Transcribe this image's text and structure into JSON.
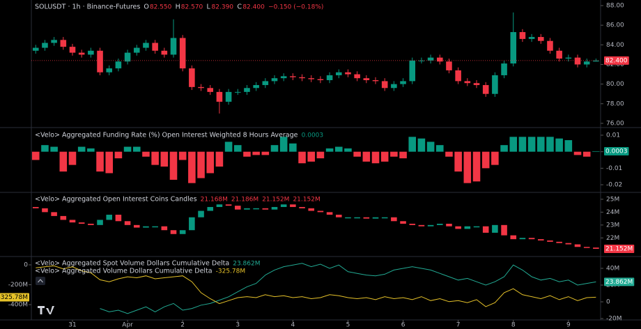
{
  "chart_data": [
    {
      "type": "candlestick",
      "title": "SOLUSDT · 1h · Binance-Futures",
      "ohlc_labels": [
        {
          "key": "O",
          "label": "82.550"
        },
        {
          "key": "H",
          "label": "82.570"
        },
        {
          "key": "L",
          "label": "82.390"
        },
        {
          "key": "C",
          "label": "82.400"
        }
      ],
      "change": "−0.150 (−0.18%)",
      "last_label": "82.400",
      "colors": {
        "up": "#089981",
        "down": "#f23645"
      },
      "xlim": [
        -17.9,
        229.4
      ],
      "ylim": [
        75.64,
        88.57
      ],
      "yticks": [
        {
          "value": 88,
          "label": "88.00"
        },
        {
          "value": 86,
          "label": "86.00"
        },
        {
          "value": 84,
          "label": "84.00"
        },
        {
          "value": 82,
          "label": "82.00"
        },
        {
          "value": 80,
          "label": "80.00"
        },
        {
          "value": 78,
          "label": "78.00"
        },
        {
          "value": 76,
          "label": "76.00"
        }
      ],
      "x": [
        -16,
        -12,
        -8,
        -4,
        0,
        4,
        8,
        12,
        16,
        20,
        24,
        28,
        32,
        36,
        40,
        44,
        48,
        52,
        56,
        60,
        64,
        68,
        72,
        76,
        80,
        84,
        88,
        92,
        96,
        100,
        104,
        108,
        112,
        116,
        120,
        124,
        128,
        132,
        136,
        140,
        144,
        148,
        152,
        156,
        160,
        164,
        168,
        172,
        176,
        180,
        184,
        188,
        192,
        196,
        200,
        204,
        208,
        212,
        216,
        220,
        224,
        228
      ],
      "open": [
        83.4,
        83.7,
        84.2,
        84.5,
        83.8,
        83.2,
        83.0,
        83.4,
        81.2,
        81.6,
        82.3,
        83.2,
        83.7,
        84.2,
        83.4,
        83.0,
        84.7,
        81.6,
        79.7,
        79.6,
        79.2,
        78.2,
        79.2,
        79.2,
        79.6,
        79.9,
        80.3,
        80.6,
        80.8,
        80.7,
        80.6,
        80.5,
        80.4,
        80.9,
        81.2,
        81.0,
        80.6,
        80.4,
        80.3,
        79.6,
        80.0,
        80.3,
        82.4,
        82.4,
        82.7,
        82.3,
        81.4,
        80.3,
        80.1,
        79.9,
        79.0,
        80.9,
        82.1,
        85.3,
        84.6,
        84.8,
        84.4,
        83.4,
        82.6,
        82.7,
        82.0,
        82.3
      ],
      "high": [
        84.0,
        84.5,
        84.8,
        84.8,
        84.1,
        83.5,
        83.7,
        83.7,
        81.9,
        82.6,
        83.5,
        84.0,
        84.5,
        84.5,
        83.7,
        86.6,
        85.0,
        81.9,
        80.0,
        79.9,
        79.5,
        79.5,
        79.5,
        79.9,
        80.2,
        80.6,
        80.9,
        81.1,
        81.1,
        81.0,
        80.9,
        80.8,
        81.2,
        81.5,
        81.5,
        81.3,
        80.9,
        80.7,
        80.6,
        80.3,
        80.6,
        82.7,
        82.7,
        83.0,
        83.0,
        82.6,
        81.7,
        80.6,
        80.4,
        80.2,
        81.2,
        82.4,
        87.3,
        85.6,
        85.1,
        85.1,
        84.7,
        83.7,
        83.0,
        83.0,
        82.6,
        82.6
      ],
      "low": [
        83.1,
        83.4,
        83.9,
        83.5,
        82.9,
        82.7,
        82.7,
        80.9,
        80.9,
        81.3,
        82.0,
        82.9,
        83.4,
        83.1,
        82.7,
        82.7,
        81.3,
        79.4,
        79.3,
        78.9,
        77.0,
        77.9,
        78.9,
        78.9,
        79.3,
        79.6,
        80.0,
        80.3,
        80.4,
        80.3,
        80.2,
        80.1,
        80.1,
        80.6,
        80.7,
        80.3,
        80.1,
        80.0,
        79.3,
        79.3,
        79.7,
        80.0,
        82.1,
        82.1,
        82.0,
        81.1,
        80.0,
        79.8,
        79.6,
        78.7,
        78.7,
        80.6,
        81.8,
        84.3,
        84.3,
        84.1,
        83.1,
        82.3,
        82.3,
        81.7,
        81.7,
        82.3
      ],
      "close": [
        83.7,
        84.2,
        84.5,
        83.8,
        83.2,
        83.0,
        83.4,
        81.2,
        81.6,
        82.3,
        83.2,
        83.7,
        84.2,
        83.4,
        83.0,
        84.7,
        81.6,
        79.7,
        79.6,
        79.2,
        78.2,
        79.2,
        79.2,
        79.6,
        79.9,
        80.3,
        80.6,
        80.8,
        80.7,
        80.6,
        80.5,
        80.4,
        80.9,
        81.2,
        81.0,
        80.6,
        80.4,
        80.3,
        79.6,
        80.0,
        80.3,
        82.4,
        82.4,
        82.7,
        82.3,
        81.4,
        80.3,
        80.1,
        79.9,
        79.0,
        80.9,
        82.1,
        85.3,
        84.6,
        84.8,
        84.4,
        83.4,
        82.6,
        82.7,
        82.0,
        82.3,
        82.4
      ]
    },
    {
      "type": "bar",
      "title": "<Velo> Aggregated Funding Rate (%) Open Interest Weighted 8 Hours Average",
      "colors": {
        "up": "#089981",
        "down": "#f23645"
      },
      "xlim": [
        -17.9,
        229.4
      ],
      "ylim": [
        -0.0242,
        0.0142
      ],
      "yticks": [
        0.01,
        0,
        -0.01,
        -0.02
      ],
      "x": [
        -16,
        -12,
        -8,
        -4,
        0,
        4,
        8,
        12,
        16,
        20,
        24,
        28,
        32,
        36,
        40,
        44,
        48,
        52,
        56,
        60,
        64,
        68,
        72,
        76,
        80,
        84,
        88,
        92,
        96,
        100,
        104,
        108,
        112,
        116,
        120,
        124,
        128,
        132,
        136,
        140,
        144,
        148,
        152,
        156,
        160,
        164,
        168,
        172,
        176,
        180,
        184,
        188,
        192,
        196,
        200,
        204,
        208,
        212,
        216,
        220,
        224,
        228
      ],
      "values": [
        -0.005,
        0.004,
        0.003,
        -0.012,
        -0.008,
        0.003,
        0.002,
        -0.012,
        -0.013,
        -0.004,
        0.003,
        0.003,
        -0.003,
        -0.008,
        -0.009,
        -0.017,
        -0.005,
        -0.019,
        -0.016,
        -0.013,
        -0.009,
        0.006,
        0.004,
        -0.003,
        -0.002,
        -0.002,
        0.004,
        0.009,
        0.005,
        -0.007,
        -0.006,
        -0.004,
        0.002,
        0.003,
        0.002,
        -0.003,
        -0.006,
        -0.007,
        -0.006,
        -0.003,
        -0.004,
        0.009,
        0.008,
        0.006,
        0.004,
        -0.003,
        -0.012,
        -0.019,
        -0.018,
        -0.01,
        -0.008,
        0.004,
        0.009,
        0.009,
        0.009,
        0.009,
        0.009,
        0.008,
        0.007,
        -0.002,
        -0.003,
        0.0003
      ]
    },
    {
      "type": "oi-candles",
      "title": "<Velo> Aggregated Open Interest Coins Candles",
      "ohlc_labels": [
        "21.168M",
        "21.186M",
        "21.152M",
        "21.152M"
      ],
      "last_label": "21.152M",
      "colors": {
        "up": "#089981",
        "down": "#f23645"
      },
      "xlim": [
        -17.9,
        229.4
      ],
      "ylim": [
        20.61,
        25.48
      ],
      "yticks": [
        {
          "value": 25,
          "label": "25M"
        },
        {
          "value": 24,
          "label": "24M"
        },
        {
          "value": 23,
          "label": "23M"
        },
        {
          "value": 22,
          "label": "22M"
        }
      ],
      "x": [
        -16,
        -12,
        -8,
        -4,
        0,
        4,
        8,
        12,
        16,
        20,
        24,
        28,
        32,
        36,
        40,
        44,
        48,
        52,
        56,
        60,
        64,
        68,
        72,
        76,
        80,
        84,
        88,
        92,
        96,
        100,
        104,
        108,
        112,
        116,
        120,
        124,
        128,
        132,
        136,
        140,
        144,
        148,
        152,
        156,
        160,
        164,
        168,
        172,
        176,
        180,
        184,
        188,
        192,
        196,
        200,
        204,
        208,
        212,
        216,
        220,
        224,
        228
      ],
      "open": [
        24.4,
        24.3,
        24.0,
        23.7,
        23.4,
        23.2,
        23.1,
        23.0,
        23.4,
        23.8,
        23.3,
        23.0,
        22.8,
        22.9,
        22.9,
        22.6,
        22.3,
        22.6,
        23.6,
        24.1,
        24.4,
        24.6,
        24.5,
        24.2,
        24.3,
        24.3,
        24.2,
        24.4,
        24.6,
        24.4,
        24.3,
        24.1,
        24.0,
        23.8,
        23.6,
        23.6,
        23.6,
        23.5,
        23.6,
        23.6,
        23.3,
        23.1,
        23.0,
        22.9,
        23.0,
        23.1,
        22.9,
        22.7,
        22.9,
        22.9,
        22.4,
        23.0,
        22.2,
        21.9,
        22.0,
        21.9,
        21.8,
        21.7,
        21.6,
        21.5,
        21.3,
        21.25
      ],
      "close": [
        24.3,
        24.0,
        23.7,
        23.4,
        23.2,
        23.1,
        23.0,
        23.4,
        23.8,
        23.3,
        23.0,
        22.8,
        22.9,
        22.9,
        22.6,
        22.3,
        22.6,
        23.6,
        24.1,
        24.4,
        24.6,
        24.5,
        24.2,
        24.3,
        24.3,
        24.2,
        24.4,
        24.6,
        24.4,
        24.3,
        24.1,
        24.0,
        23.8,
        23.6,
        23.6,
        23.6,
        23.5,
        23.6,
        23.6,
        23.3,
        23.1,
        23.0,
        22.9,
        23.0,
        23.1,
        22.9,
        22.7,
        22.9,
        22.9,
        22.4,
        23.0,
        22.2,
        21.9,
        22.0,
        21.9,
        21.8,
        21.7,
        21.6,
        21.5,
        21.3,
        21.25,
        21.152
      ]
    },
    {
      "type": "line",
      "xlim": [
        -17.9,
        229.4
      ],
      "ylim": [
        -547,
        77
      ],
      "y2lim": [
        -20.8,
        53.3
      ],
      "yticks": [
        0,
        {
          "value": -200,
          "label": "-200M"
        },
        {
          "value": -400,
          "label": "-400M"
        }
      ],
      "y2ticks": [
        {
          "value": 40,
          "label": "40M"
        },
        {
          "value": 20,
          "label": "20M"
        },
        0,
        {
          "value": -20,
          "label": "-20M"
        }
      ],
      "xticks": [
        {
          "value": 0,
          "label": "31"
        },
        {
          "value": 24,
          "label": "Apr"
        },
        {
          "value": 48,
          "label": "2"
        },
        {
          "value": 72,
          "label": "3"
        },
        {
          "value": 96,
          "label": "4"
        },
        {
          "value": 120,
          "label": "5"
        },
        {
          "value": 144,
          "label": "6"
        },
        {
          "value": 168,
          "label": "7"
        },
        {
          "value": 192,
          "label": "8"
        },
        {
          "value": 216,
          "label": "9"
        }
      ],
      "x": [
        -16,
        -12,
        -8,
        -4,
        0,
        4,
        8,
        12,
        16,
        20,
        24,
        28,
        32,
        36,
        40,
        44,
        48,
        52,
        56,
        60,
        64,
        68,
        72,
        76,
        80,
        84,
        88,
        92,
        96,
        100,
        104,
        108,
        112,
        116,
        120,
        124,
        128,
        132,
        136,
        140,
        144,
        148,
        152,
        156,
        160,
        164,
        168,
        172,
        176,
        180,
        184,
        188,
        192,
        196,
        200,
        204,
        208,
        212,
        216,
        220,
        224,
        228
      ],
      "series": [
        {
          "name": "<Velo> Aggregated Spot Volume Dollars Cumulative Delta",
          "color": "#22ab94",
          "axis": "y2",
          "last_label": "23.862M",
          "values": [
            null,
            null,
            null,
            null,
            null,
            null,
            null,
            -8,
            -12,
            -10,
            -14,
            -10,
            -6,
            -12,
            -6,
            -2,
            -10,
            -8,
            -4,
            -2,
            2,
            6,
            12,
            18,
            22,
            32,
            38,
            42,
            44,
            46,
            42,
            45,
            40,
            44,
            36,
            34,
            32,
            31,
            33,
            38,
            40,
            42,
            40,
            38,
            34,
            30,
            26,
            28,
            24,
            20,
            24,
            30,
            44,
            38,
            30,
            26,
            28,
            24,
            26,
            20,
            22,
            23.862
          ]
        },
        {
          "name": "<Velo> Aggregated Volume Dollars Cumulative Delta",
          "color": "#e6c229",
          "last_label": "-325.78M",
          "values": [
            -30,
            -20,
            -10,
            -40,
            -20,
            -60,
            -80,
            -150,
            -170,
            -140,
            -120,
            -130,
            -110,
            -140,
            -130,
            -120,
            -110,
            -170,
            -280,
            -340,
            -390,
            -360,
            -330,
            -320,
            -330,
            -300,
            -320,
            -310,
            -330,
            -320,
            -340,
            -330,
            -300,
            -310,
            -330,
            -340,
            -330,
            -350,
            -320,
            -340,
            -330,
            -350,
            -320,
            -360,
            -340,
            -370,
            -360,
            -380,
            -350,
            -420,
            -380,
            -280,
            -240,
            -300,
            -320,
            -340,
            -310,
            -350,
            -320,
            -360,
            -330,
            -325.78
          ]
        }
      ]
    }
  ]
}
